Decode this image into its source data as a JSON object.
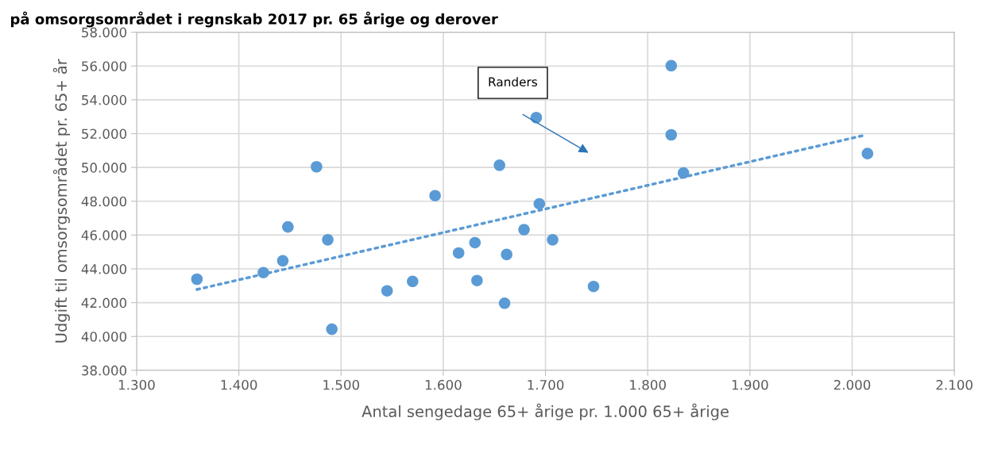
{
  "chart_data": {
    "type": "scatter",
    "title": "på omsorgsområdet i regnskab 2017 pr. 65 årige og derover",
    "xlabel": "Antal sengedage 65+ årige pr. 1.000 65+ årige",
    "ylabel": "Udgift til omsorgsområdet pr. 65+ år",
    "xlim": [
      1300,
      2100
    ],
    "xticks": [
      {
        "value": 1300,
        "label": "1.300"
      },
      {
        "value": 1400,
        "label": "1.400"
      },
      {
        "value": 1500,
        "label": "1.500"
      },
      {
        "value": 1600,
        "label": "1.600"
      },
      {
        "value": 1700,
        "label": "1.700"
      },
      {
        "value": 1800,
        "label": "1.800"
      },
      {
        "value": 1900,
        "label": "1.900"
      },
      {
        "value": 2000,
        "label": "2.000"
      },
      {
        "value": 2100,
        "label": "2.100"
      }
    ],
    "ylim": [
      38000,
      58000
    ],
    "yticks": [
      {
        "value": 38000,
        "label": "38.000"
      },
      {
        "value": 40000,
        "label": "40.000"
      },
      {
        "value": 42000,
        "label": "42.000"
      },
      {
        "value": 44000,
        "label": "44.000"
      },
      {
        "value": 46000,
        "label": "46.000"
      },
      {
        "value": 48000,
        "label": "48.000"
      },
      {
        "value": 50000,
        "label": "50.000"
      },
      {
        "value": 52000,
        "label": "52.000"
      },
      {
        "value": 54000,
        "label": "54.000"
      },
      {
        "value": 56000,
        "label": "56.000"
      },
      {
        "value": 58000,
        "label": "58.000"
      }
    ],
    "grid": true,
    "marker": "circle",
    "legend": false,
    "series": [
      {
        "color": "#5b9bd5",
        "x": [
          1359,
          1424,
          1443,
          1448,
          1476,
          1487,
          1491,
          1545,
          1570,
          1592,
          1615,
          1631,
          1633,
          1655,
          1662,
          1660,
          1679,
          1691,
          1694,
          1707,
          1747,
          1823,
          1823,
          1835,
          2015
        ],
        "values": [
          43390,
          43780,
          44480,
          46480,
          50040,
          45720,
          40430,
          42700,
          43260,
          48330,
          44940,
          45550,
          43310,
          50130,
          44850,
          41970,
          46320,
          52950,
          47850,
          45720,
          42960,
          56020,
          51930,
          49670,
          50820
        ]
      },
      {
        "type": "line",
        "color": "#5b9bd5",
        "line_style": "dotted",
        "marker": "none",
        "x": [
          1359,
          2011
        ],
        "values": [
          42780,
          51890
        ]
      }
    ],
    "annotations": [
      "Randers"
    ]
  }
}
